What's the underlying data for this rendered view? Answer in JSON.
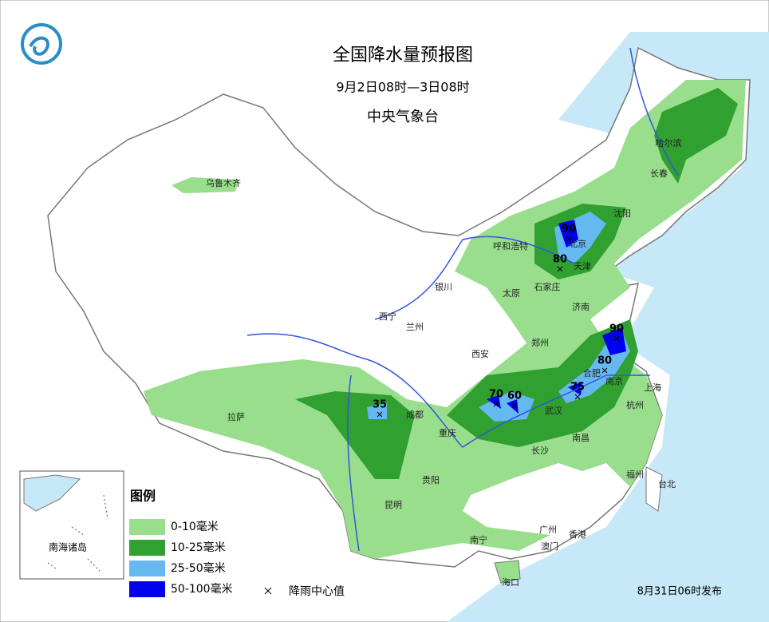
{
  "header": {
    "title": "全国降水量预报图",
    "period": "9月2日08时—3日08时",
    "issuer": "中央气象台"
  },
  "cities": [
    "乌鲁木齐",
    "哈尔滨",
    "长春",
    "沈阳",
    "呼和浩特",
    "北京",
    "天津",
    "石家庄",
    "太原",
    "银川",
    "西宁",
    "兰州",
    "济南",
    "郑州",
    "西安",
    "合肥",
    "南京",
    "上海",
    "杭州",
    "武汉",
    "成都",
    "重庆",
    "拉萨",
    "长沙",
    "南昌",
    "贵阳",
    "昆明",
    "福州",
    "台北",
    "南宁",
    "广州",
    "香港",
    "澳门",
    "海口"
  ],
  "rain_centers": [
    90,
    80,
    90,
    80,
    75,
    70,
    60,
    35
  ],
  "legend": {
    "title": "图例",
    "items": [
      "0-10毫米",
      "10-25毫米",
      "25-50毫米",
      "50-100毫米"
    ],
    "center_marker": "降雨中心值"
  },
  "inset_label": "南海诸岛",
  "footer": "8月31日06时发布"
}
